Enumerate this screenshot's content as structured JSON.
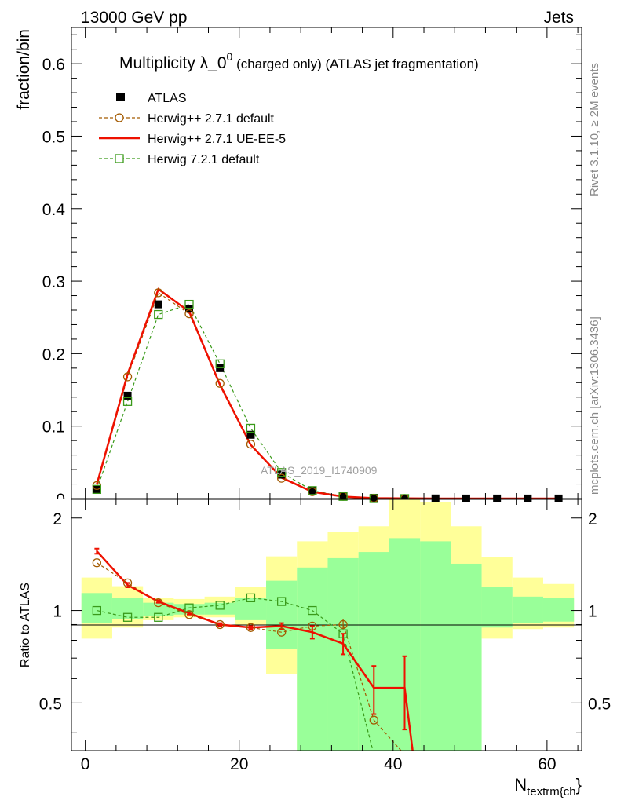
{
  "header": {
    "left": "13000 GeV pp",
    "right": "Jets"
  },
  "colors": {
    "atlas": "#000000",
    "herwigpp_default": "#a35a00",
    "herwigpp_ueee5": "#ee1100",
    "herwig721": "#3a9a1a",
    "band_outer": "#ffff99",
    "band_inner": "#99ff99"
  },
  "chart_data": {
    "type": "line",
    "title": "Multiplicity λ_0",
    "title_sup": "0",
    "title_suffix": " (charged only) (ATLAS jet fragmentation)",
    "xlabel_main": "N",
    "xlabel_sub": "textrm{ch",
    "xlabel_close": "}",
    "ylabel": "fraction/bin",
    "ratio_ylabel": "Ratio to ATLAS",
    "watermark": "ATLAS_2019_I1740909",
    "side_texts": [
      "Rivet 3.1.10, ≥ 2M events",
      "mcplots.cern.ch [arXiv:1306.3436]"
    ],
    "xlim": [
      -1.8,
      64.5
    ],
    "ylim": [
      0,
      0.65
    ],
    "ratio_ylim": [
      0.35,
      2.3
    ],
    "x_ticks": [
      0,
      20,
      40,
      60
    ],
    "x_tick_labels": [
      "0",
      "20",
      "40",
      "60"
    ],
    "y_ticks": [
      0,
      0.1,
      0.2,
      0.3,
      0.4,
      0.5,
      0.6
    ],
    "y_tick_labels": [
      "0",
      "0.1",
      "0.2",
      "0.3",
      "0.4",
      "0.5",
      "0.6"
    ],
    "ratio_ticks": [
      0.5,
      1,
      2
    ],
    "ratio_tick_labels": [
      "0.5",
      "1",
      "2"
    ],
    "legend": [
      "ATLAS",
      "Herwig++ 2.7.1 default",
      "Herwig++ 2.7.1 UE-EE-5",
      "Herwig 7.2.1 default"
    ],
    "bin_edges": [
      -0.5,
      3.5,
      7.5,
      11.5,
      15.5,
      19.5,
      23.5,
      27.5,
      31.5,
      35.5,
      39.5,
      43.5,
      47.5,
      51.5,
      55.5,
      59.5,
      63.5
    ],
    "x": [
      1.5,
      5.5,
      9.5,
      13.5,
      17.5,
      21.5,
      25.5,
      29.5,
      33.5,
      37.5,
      41.5,
      45.5,
      49.5,
      53.5,
      57.5,
      61.5
    ],
    "series": [
      {
        "name": "ATLAS",
        "values": [
          0.0125,
          0.142,
          0.268,
          0.262,
          0.18,
          0.088,
          0.033,
          0.011,
          0.0035,
          0.0011,
          0.0004,
          0.0002,
          0.0001,
          0.0001,
          0.0001,
          0.0001
        ]
      },
      {
        "name": "Herwig++ 2.7.1 default",
        "values": [
          0.018,
          0.168,
          0.284,
          0.255,
          0.159,
          0.075,
          0.028,
          0.0095,
          0.0031,
          0.0005,
          0.0001,
          0.0,
          0.0,
          0.0,
          0.0,
          0.0
        ]
      },
      {
        "name": "Herwig++ 2.7.1 UE-EE-5",
        "values": [
          0.0195,
          0.172,
          0.289,
          0.258,
          0.157,
          0.074,
          0.029,
          0.0093,
          0.0027,
          0.0006,
          0.00023,
          0.0,
          0.0,
          0.0,
          0.0,
          0.0
        ]
      },
      {
        "name": "Herwig 7.2.1 default",
        "values": [
          0.0126,
          0.134,
          0.254,
          0.268,
          0.186,
          0.097,
          0.036,
          0.011,
          0.003,
          0.0,
          0.0,
          0.0,
          0.0,
          0.0,
          0.0,
          0.0
        ]
      }
    ],
    "ratios": [
      {
        "name": "Herwig++ 2.7.1 default",
        "x": [
          1.5,
          5.5,
          9.5,
          13.5,
          17.5,
          21.5,
          25.5,
          29.5,
          33.5,
          37.5,
          41.5
        ],
        "values": [
          1.43,
          1.23,
          1.06,
          0.97,
          0.9,
          0.88,
          0.85,
          0.89,
          0.9,
          0.44,
          0.2
        ]
      },
      {
        "name": "Herwig++ 2.7.1 UE-EE-5",
        "x": [
          1.5,
          5.5,
          9.5,
          13.5,
          17.5,
          21.5,
          25.5,
          29.5,
          33.5,
          37.5,
          41.5,
          42.6
        ],
        "values": [
          1.56,
          1.21,
          1.07,
          0.98,
          0.9,
          0.88,
          0.89,
          0.85,
          0.78,
          0.56,
          0.56,
          0.2
        ],
        "errors": [
          0.03,
          0.02,
          0.01,
          0.01,
          0.01,
          0.01,
          0.02,
          0.04,
          0.06,
          0.1,
          0.15,
          0.0
        ]
      },
      {
        "name": "Herwig 7.2.1 default",
        "x": [
          1.5,
          5.5,
          9.5,
          13.5,
          17.5,
          21.5,
          25.5,
          29.5,
          33.5,
          37.5
        ],
        "values": [
          1.0,
          0.95,
          0.95,
          1.02,
          1.04,
          1.1,
          1.07,
          1.0,
          0.84,
          0.2
        ]
      }
    ],
    "ratio_band_outer": [
      [
        0.81,
        1.28
      ],
      [
        0.88,
        1.2
      ],
      [
        0.93,
        1.1
      ],
      [
        0.95,
        1.09
      ],
      [
        0.95,
        1.11
      ],
      [
        0.9,
        1.19
      ],
      [
        0.62,
        1.5
      ],
      [
        0.2,
        1.68
      ],
      [
        0.2,
        1.8
      ],
      [
        0.2,
        1.88
      ],
      [
        0.2,
        2.3
      ],
      [
        0.2,
        2.25
      ],
      [
        0.2,
        1.88
      ],
      [
        0.81,
        1.49
      ],
      [
        0.87,
        1.28
      ],
      [
        0.88,
        1.22
      ]
    ],
    "ratio_band_inner": [
      [
        0.91,
        1.14
      ],
      [
        0.94,
        1.1
      ],
      [
        0.96,
        1.06
      ],
      [
        0.97,
        1.05
      ],
      [
        0.97,
        1.06
      ],
      [
        0.93,
        1.1
      ],
      [
        0.75,
        1.25
      ],
      [
        0.2,
        1.38
      ],
      [
        0.2,
        1.48
      ],
      [
        0.2,
        1.55
      ],
      [
        0.2,
        1.72
      ],
      [
        0.2,
        1.68
      ],
      [
        0.2,
        1.42
      ],
      [
        0.88,
        1.19
      ],
      [
        0.91,
        1.11
      ],
      [
        0.92,
        1.1
      ]
    ]
  }
}
